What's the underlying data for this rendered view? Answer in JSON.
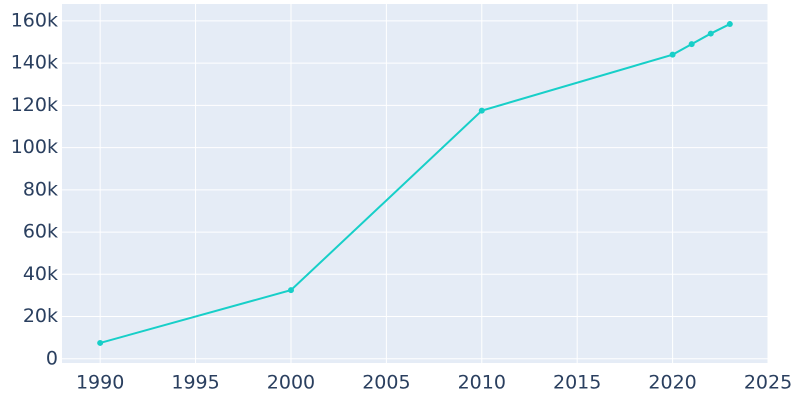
{
  "chart_data": {
    "type": "line",
    "x": [
      1990,
      2000,
      2010,
      2020,
      2021,
      2022,
      2023
    ],
    "series": [
      {
        "color": "#17cfc8",
        "values": [
          7500,
          32500,
          117500,
          144000,
          149000,
          154000,
          158500
        ]
      }
    ],
    "xlim": [
      1988,
      2025
    ],
    "xticks": [
      1990,
      1995,
      2000,
      2005,
      2010,
      2015,
      2020,
      2025
    ],
    "ylim": [
      -2000,
      168000
    ],
    "yticks": [
      0,
      {
        "value": 20000,
        "label": "20k"
      },
      {
        "value": 40000,
        "label": "40k"
      },
      {
        "value": 60000,
        "label": "60k"
      },
      {
        "value": 80000,
        "label": "80k"
      },
      {
        "value": 100000,
        "label": "100k"
      },
      {
        "value": 120000,
        "label": "120k"
      },
      {
        "value": 140000,
        "label": "140k"
      },
      {
        "value": 160000,
        "label": "160k"
      }
    ],
    "grid": true,
    "background": "#e5ecf6"
  }
}
